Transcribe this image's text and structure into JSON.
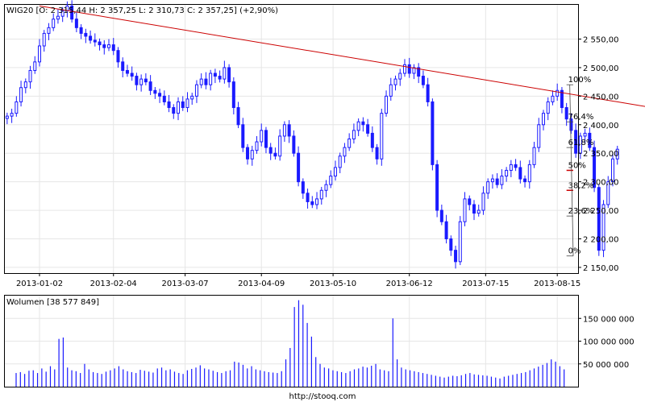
{
  "header": {
    "symbol": "WIG20",
    "ohlc_text": "[O: 2 315,44  H: 2 357,25  L: 2 310,73  C: 2 357,25]  (+2,90%)"
  },
  "volume_header": {
    "label": "Wolumen",
    "value_text": "[38 577 849]"
  },
  "footer": {
    "source": "http://stooq.com"
  },
  "colors": {
    "candles": "#1a1aff",
    "trendline": "#cc0000",
    "fib_highlight": "#cc0000",
    "fib_lines": "#444444",
    "grid": "#e6e6e6",
    "volume_bars": "#1a1aff"
  },
  "chart_data": [
    {
      "type": "line",
      "chart_style": "candlestick",
      "title": "WIG20",
      "x_ticks": [
        "2013-01-02",
        "2013-02-04",
        "2013-03-07",
        "2013-04-09",
        "2013-05-10",
        "2013-06-12",
        "2013-07-15",
        "2013-08-15"
      ],
      "y_ticks": [
        "2 150,00",
        "2 200,00",
        "2 250,00",
        "2 300,00",
        "2 350,00",
        "2 400,00",
        "2 450,00",
        "2 500,00",
        "2 550,00"
      ],
      "ylim": [
        2140,
        2610
      ],
      "grid": true,
      "x_range_days": [
        -15,
        233
      ],
      "closes": [
        [
          -14,
          2415
        ],
        [
          -12,
          2420
        ],
        [
          -10,
          2440
        ],
        [
          -8,
          2465
        ],
        [
          -6,
          2475
        ],
        [
          -4,
          2495
        ],
        [
          -2,
          2510
        ],
        [
          0,
          2538
        ],
        [
          2,
          2560
        ],
        [
          4,
          2570
        ],
        [
          6,
          2585
        ],
        [
          8,
          2590
        ],
        [
          10,
          2600
        ],
        [
          12,
          2608
        ],
        [
          14,
          2585
        ],
        [
          16,
          2570
        ],
        [
          18,
          2560
        ],
        [
          20,
          2555
        ],
        [
          22,
          2548
        ],
        [
          24,
          2545
        ],
        [
          26,
          2540
        ],
        [
          28,
          2535
        ],
        [
          30,
          2540
        ],
        [
          32,
          2530
        ],
        [
          34,
          2510
        ],
        [
          36,
          2495
        ],
        [
          38,
          2490
        ],
        [
          40,
          2485
        ],
        [
          42,
          2470
        ],
        [
          44,
          2480
        ],
        [
          46,
          2475
        ],
        [
          48,
          2460
        ],
        [
          50,
          2455
        ],
        [
          52,
          2450
        ],
        [
          54,
          2440
        ],
        [
          56,
          2430
        ],
        [
          58,
          2420
        ],
        [
          60,
          2440
        ],
        [
          62,
          2430
        ],
        [
          64,
          2445
        ],
        [
          66,
          2450
        ],
        [
          68,
          2470
        ],
        [
          70,
          2480
        ],
        [
          72,
          2470
        ],
        [
          74,
          2490
        ],
        [
          76,
          2485
        ],
        [
          78,
          2480
        ],
        [
          80,
          2500
        ],
        [
          82,
          2475
        ],
        [
          84,
          2430
        ],
        [
          86,
          2400
        ],
        [
          88,
          2360
        ],
        [
          90,
          2340
        ],
        [
          92,
          2355
        ],
        [
          94,
          2370
        ],
        [
          96,
          2390
        ],
        [
          98,
          2360
        ],
        [
          100,
          2350
        ],
        [
          102,
          2345
        ],
        [
          104,
          2380
        ],
        [
          106,
          2400
        ],
        [
          108,
          2380
        ],
        [
          110,
          2350
        ],
        [
          112,
          2300
        ],
        [
          114,
          2280
        ],
        [
          116,
          2265
        ],
        [
          118,
          2260
        ],
        [
          120,
          2270
        ],
        [
          122,
          2285
        ],
        [
          124,
          2295
        ],
        [
          126,
          2310
        ],
        [
          128,
          2325
        ],
        [
          130,
          2345
        ],
        [
          132,
          2360
        ],
        [
          134,
          2375
        ],
        [
          136,
          2390
        ],
        [
          138,
          2405
        ],
        [
          140,
          2400
        ],
        [
          142,
          2385
        ],
        [
          144,
          2360
        ],
        [
          146,
          2340
        ],
        [
          148,
          2420
        ],
        [
          150,
          2450
        ],
        [
          152,
          2470
        ],
        [
          154,
          2480
        ],
        [
          156,
          2490
        ],
        [
          158,
          2505
        ],
        [
          160,
          2490
        ],
        [
          162,
          2500
        ],
        [
          164,
          2485
        ],
        [
          166,
          2470
        ],
        [
          168,
          2440
        ],
        [
          170,
          2330
        ],
        [
          172,
          2250
        ],
        [
          174,
          2230
        ],
        [
          176,
          2200
        ],
        [
          178,
          2180
        ],
        [
          180,
          2160
        ],
        [
          182,
          2230
        ],
        [
          184,
          2270
        ],
        [
          186,
          2260
        ],
        [
          188,
          2245
        ],
        [
          190,
          2250
        ],
        [
          192,
          2280
        ],
        [
          194,
          2300
        ],
        [
          196,
          2305
        ],
        [
          198,
          2295
        ],
        [
          200,
          2310
        ],
        [
          202,
          2320
        ],
        [
          204,
          2330
        ],
        [
          206,
          2325
        ],
        [
          208,
          2305
        ],
        [
          210,
          2300
        ],
        [
          212,
          2330
        ],
        [
          214,
          2360
        ],
        [
          216,
          2400
        ],
        [
          218,
          2420
        ],
        [
          220,
          2440
        ],
        [
          222,
          2450
        ],
        [
          224,
          2460
        ],
        [
          226,
          2430
        ],
        [
          228,
          2410
        ],
        [
          230,
          2390
        ],
        [
          232,
          2350
        ],
        [
          234,
          2380
        ],
        [
          236,
          2385
        ],
        [
          238,
          2360
        ],
        [
          240,
          2290
        ],
        [
          242,
          2180
        ],
        [
          244,
          2260
        ],
        [
          246,
          2300
        ],
        [
          248,
          2340
        ],
        [
          250,
          2357
        ]
      ],
      "trendline": {
        "from": [
          0,
          2608
        ],
        "to": [
          262,
          2432
        ]
      },
      "fibonacci": [
        {
          "label": "100%",
          "value": 2470
        },
        {
          "label": "76,4%",
          "value": 2405
        },
        {
          "label": "61,8%",
          "value": 2360
        },
        {
          "label": "50%",
          "value": 2320
        },
        {
          "label": "38,2%",
          "value": 2285
        },
        {
          "label": "23,6%",
          "value": 2240
        },
        {
          "label": "0%",
          "value": 2170
        }
      ]
    },
    {
      "type": "bar",
      "title": "Wolumen",
      "y_ticks": [
        "50 000 000",
        "100 000 000",
        "150 000 000"
      ],
      "ylim": [
        0,
        200000000
      ],
      "grid": true,
      "volumes": [
        30,
        32,
        28,
        35,
        36,
        30,
        40,
        33,
        45,
        38,
        105,
        108,
        42,
        36,
        34,
        30,
        50,
        38,
        32,
        30,
        28,
        33,
        36,
        40,
        45,
        38,
        34,
        32,
        30,
        37,
        35,
        33,
        31,
        40,
        42,
        36,
        38,
        33,
        30,
        28,
        36,
        39,
        42,
        47,
        40,
        38,
        35,
        32,
        30,
        34,
        36,
        55,
        53,
        48,
        40,
        45,
        38,
        36,
        34,
        32,
        31,
        30,
        34,
        60,
        85,
        175,
        190,
        180,
        140,
        110,
        65,
        50,
        42,
        40,
        36,
        34,
        32,
        30,
        34,
        38,
        40,
        44,
        42,
        46,
        50,
        38,
        36,
        34,
        150,
        60,
        42,
        38,
        36,
        34,
        32,
        30,
        28,
        26,
        24,
        22,
        20,
        22,
        24,
        23,
        25,
        28,
        30,
        27,
        26,
        25,
        24,
        22,
        20,
        18,
        22,
        24,
        26,
        28,
        30,
        32,
        36,
        40,
        44,
        48,
        52,
        60,
        55,
        45,
        38
      ]
    }
  ]
}
